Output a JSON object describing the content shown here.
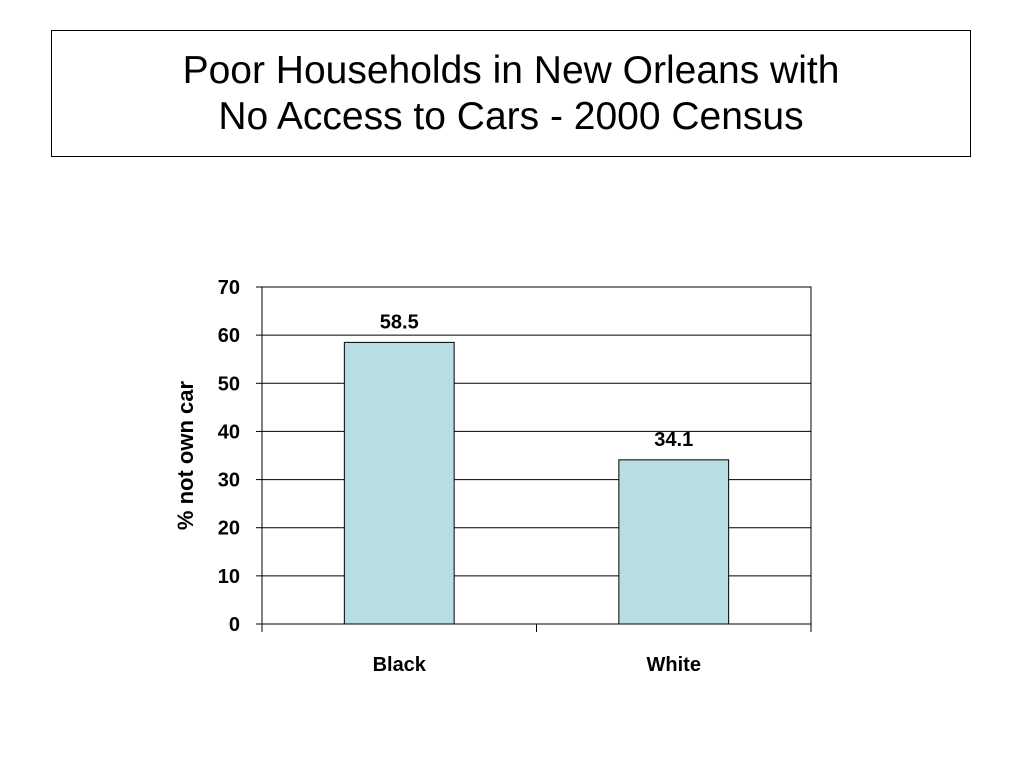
{
  "title_lines": [
    "Poor Households in New Orleans with",
    "No Access to Cars - 2000 Census"
  ],
  "chart_data": {
    "type": "bar",
    "title": "Poor Households in New Orleans with No Access to Cars - 2000 Census",
    "categories": [
      "Black",
      "White"
    ],
    "values": [
      58.5,
      34.1
    ],
    "data_labels": [
      "58.5",
      "34.1"
    ],
    "xlabel": "",
    "ylabel": "% not own car",
    "ylim": [
      0,
      70
    ],
    "yticks": [
      0,
      10,
      20,
      30,
      40,
      50,
      60,
      70
    ],
    "ytick_labels": [
      "0",
      "10",
      "20",
      "30",
      "40",
      "50",
      "60",
      "70"
    ],
    "grid": true,
    "legend": "none",
    "bar_color": "#b8dee3",
    "bar_edge_color": "#000000"
  }
}
